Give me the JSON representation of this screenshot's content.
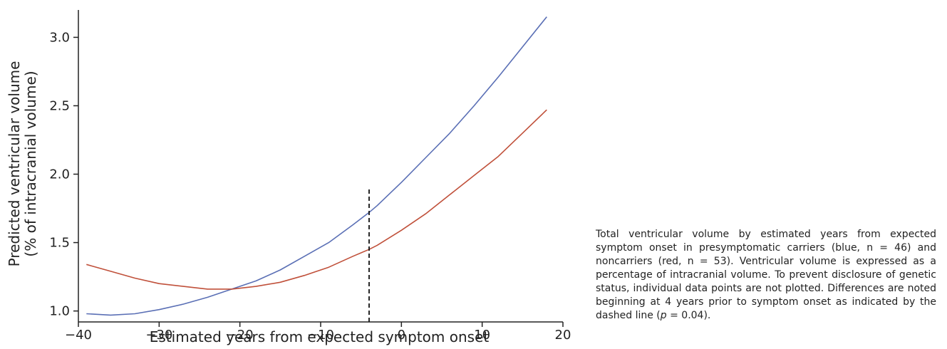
{
  "chart_data": {
    "type": "line",
    "xlabel": "Estimated years from expected symptom onset",
    "ylabel_line1": "Predicted ventricular volume",
    "ylabel_line2": "(% of intracranial volume)",
    "xlim": [
      -40,
      20
    ],
    "ylim": [
      0.92,
      3.2
    ],
    "x_ticks": [
      -40,
      -30,
      -20,
      -10,
      0,
      10,
      20
    ],
    "x_tick_labels": [
      "−40",
      "−30",
      "−20",
      "−10",
      "0",
      "10",
      "20"
    ],
    "y_ticks": [
      1.0,
      1.5,
      2.0,
      2.5,
      3.0
    ],
    "y_tick_labels": [
      "1.0",
      "1.5",
      "2.0",
      "2.5",
      "3.0"
    ],
    "grid": false,
    "series": [
      {
        "color": "#5a6fb5",
        "x": [
          -39,
          -36,
          -33,
          -30,
          -27,
          -24,
          -21,
          -18,
          -15,
          -12,
          -9,
          -6,
          -4,
          -3,
          0,
          3,
          6,
          9,
          12,
          15,
          18
        ],
        "y": [
          0.98,
          0.97,
          0.98,
          1.01,
          1.05,
          1.1,
          1.16,
          1.22,
          1.3,
          1.4,
          1.5,
          1.63,
          1.72,
          1.77,
          1.94,
          2.12,
          2.3,
          2.5,
          2.71,
          2.93,
          3.15
        ]
      },
      {
        "color": "#c0503a",
        "x": [
          -39,
          -36,
          -33,
          -30,
          -27,
          -24,
          -21,
          -18,
          -15,
          -12,
          -9,
          -6,
          -4,
          -3,
          0,
          3,
          6,
          9,
          12,
          15,
          18
        ],
        "y": [
          1.34,
          1.29,
          1.24,
          1.2,
          1.18,
          1.16,
          1.16,
          1.18,
          1.21,
          1.26,
          1.32,
          1.4,
          1.45,
          1.48,
          1.59,
          1.71,
          1.85,
          1.99,
          2.13,
          2.3,
          2.47
        ]
      }
    ],
    "annotations": [
      {
        "type": "vline",
        "x": -4,
        "y_from": 0.92,
        "y_to": 1.89,
        "style": "dashed",
        "color": "#111111"
      }
    ]
  },
  "caption": {
    "main": "Total ventricular volume by estimated years from expected symptom onset in presymptomatic carriers (blue, n = 46) and noncarriers (red, n = 53). Ventricular volume is expressed as a percentage of intracranial volume. To prevent disclosure of genetic status, individual data points are not plotted. Differences are noted beginning at 4 years prior to symptom onset as indicated by the dashed line (",
    "p_symbol": "p",
    "p_value": " = 0.04)."
  }
}
